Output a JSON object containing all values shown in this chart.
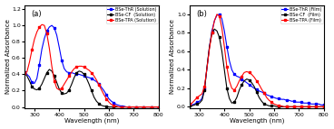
{
  "panel_a": {
    "title": "(a)",
    "xlabel": "Wavelength (nm)",
    "ylabel": "Normalized Absorbance",
    "xlim": [
      260,
      800
    ],
    "ylim": [
      -0.02,
      1.25
    ],
    "yticks": [
      0.0,
      0.2,
      0.4,
      0.6,
      0.8,
      1.0,
      1.2
    ],
    "xticks": [
      300,
      400,
      500,
      600,
      700,
      800
    ],
    "legend": [
      "BSe-ThR (Solution)",
      "BSe-CF  (Solution)",
      "BSe-TPA (Solution)"
    ],
    "colors": [
      "blue",
      "black",
      "red"
    ],
    "curves": {
      "ThR": {
        "x": [
          260,
          270,
          280,
          290,
          300,
          310,
          320,
          330,
          340,
          350,
          360,
          370,
          380,
          390,
          400,
          410,
          420,
          430,
          440,
          450,
          460,
          470,
          480,
          490,
          500,
          510,
          520,
          530,
          540,
          550,
          560,
          570,
          580,
          590,
          600,
          610,
          620,
          630,
          640,
          650,
          660,
          670,
          680,
          690,
          700,
          710,
          720,
          730,
          740,
          750,
          760,
          770,
          780,
          790,
          800
        ],
        "y": [
          0.43,
          0.4,
          0.37,
          0.3,
          0.29,
          0.35,
          0.52,
          0.71,
          0.84,
          0.93,
          0.98,
          1.0,
          0.97,
          0.88,
          0.73,
          0.57,
          0.47,
          0.43,
          0.42,
          0.42,
          0.41,
          0.4,
          0.4,
          0.39,
          0.38,
          0.37,
          0.36,
          0.35,
          0.33,
          0.31,
          0.28,
          0.24,
          0.2,
          0.15,
          0.1,
          0.07,
          0.05,
          0.03,
          0.02,
          0.01,
          0.01,
          0.0,
          0.0,
          0.0,
          0.0,
          0.0,
          0.0,
          0.0,
          0.0,
          0.0,
          0.0,
          0.0,
          0.0,
          0.0,
          0.0
        ]
      },
      "CF": {
        "x": [
          260,
          270,
          280,
          290,
          300,
          310,
          320,
          330,
          340,
          350,
          360,
          370,
          380,
          390,
          400,
          410,
          420,
          430,
          440,
          450,
          460,
          470,
          480,
          490,
          500,
          510,
          520,
          530,
          540,
          550,
          560,
          570,
          580,
          590,
          600,
          610,
          620,
          630,
          640,
          650,
          660,
          670,
          680,
          690,
          700,
          710,
          720,
          730,
          740,
          750,
          760,
          770,
          780,
          790,
          800
        ],
        "y": [
          0.42,
          0.38,
          0.32,
          0.25,
          0.22,
          0.21,
          0.23,
          0.28,
          0.35,
          0.42,
          0.46,
          0.44,
          0.38,
          0.3,
          0.22,
          0.17,
          0.16,
          0.17,
          0.21,
          0.28,
          0.36,
          0.42,
          0.44,
          0.43,
          0.4,
          0.35,
          0.28,
          0.2,
          0.12,
          0.07,
          0.04,
          0.02,
          0.01,
          0.01,
          0.0,
          0.0,
          0.0,
          0.0,
          0.0,
          0.0,
          0.0,
          0.0,
          0.0,
          0.0,
          0.0,
          0.0,
          0.0,
          0.0,
          0.0,
          0.0,
          0.0,
          0.0,
          0.0,
          0.0,
          0.0
        ]
      },
      "TPA": {
        "x": [
          260,
          270,
          280,
          290,
          300,
          310,
          320,
          330,
          340,
          350,
          360,
          370,
          380,
          390,
          400,
          410,
          420,
          430,
          440,
          450,
          460,
          470,
          480,
          490,
          500,
          510,
          520,
          530,
          540,
          550,
          560,
          570,
          580,
          590,
          600,
          610,
          620,
          630,
          640,
          650,
          660,
          670,
          680,
          690,
          700,
          710,
          720,
          730,
          740,
          750,
          760,
          770,
          780,
          790,
          800
        ],
        "y": [
          0.42,
          0.43,
          0.55,
          0.7,
          0.83,
          0.92,
          0.98,
          1.01,
          1.0,
          0.9,
          0.72,
          0.5,
          0.32,
          0.23,
          0.21,
          0.23,
          0.28,
          0.33,
          0.38,
          0.43,
          0.47,
          0.49,
          0.5,
          0.5,
          0.49,
          0.47,
          0.45,
          0.42,
          0.38,
          0.33,
          0.27,
          0.21,
          0.15,
          0.1,
          0.06,
          0.03,
          0.02,
          0.01,
          0.0,
          0.0,
          0.0,
          0.0,
          0.0,
          0.0,
          0.0,
          0.0,
          0.0,
          0.0,
          0.0,
          0.0,
          0.0,
          0.0,
          0.0,
          0.0,
          0.0
        ]
      }
    }
  },
  "panel_b": {
    "title": "(b)",
    "xlabel": "Wavelength (nm)",
    "ylabel": "Normalized Absorbance",
    "xlim": [
      260,
      800
    ],
    "ylim": [
      -0.02,
      1.1
    ],
    "yticks": [
      0.0,
      0.2,
      0.4,
      0.6,
      0.8,
      1.0
    ],
    "xticks": [
      300,
      400,
      500,
      600,
      700,
      800
    ],
    "legend": [
      "BSe-ThR (Film)",
      "BSe-CF  (Film)",
      "BSe-TPA (Film)"
    ],
    "colors": [
      "blue",
      "black",
      "red"
    ],
    "curves": {
      "ThR": {
        "x": [
          260,
          270,
          280,
          290,
          300,
          310,
          320,
          330,
          340,
          350,
          360,
          370,
          380,
          390,
          400,
          410,
          420,
          430,
          440,
          450,
          460,
          470,
          480,
          490,
          500,
          510,
          520,
          530,
          540,
          550,
          560,
          570,
          580,
          590,
          600,
          610,
          620,
          630,
          640,
          650,
          660,
          670,
          680,
          690,
          700,
          710,
          720,
          730,
          740,
          750,
          760,
          770,
          780,
          790,
          800
        ],
        "y": [
          0.02,
          0.02,
          0.03,
          0.05,
          0.06,
          0.09,
          0.2,
          0.42,
          0.65,
          0.82,
          0.93,
          0.99,
          1.0,
          0.95,
          0.82,
          0.65,
          0.5,
          0.4,
          0.35,
          0.33,
          0.32,
          0.3,
          0.28,
          0.26,
          0.24,
          0.22,
          0.2,
          0.19,
          0.17,
          0.16,
          0.15,
          0.13,
          0.12,
          0.11,
          0.1,
          0.09,
          0.09,
          0.08,
          0.08,
          0.07,
          0.07,
          0.06,
          0.06,
          0.05,
          0.05,
          0.05,
          0.04,
          0.04,
          0.04,
          0.03,
          0.03,
          0.03,
          0.03,
          0.02,
          0.02
        ]
      },
      "CF": {
        "x": [
          260,
          270,
          280,
          290,
          300,
          310,
          320,
          330,
          340,
          350,
          360,
          370,
          380,
          390,
          400,
          410,
          420,
          430,
          440,
          450,
          460,
          470,
          480,
          490,
          500,
          510,
          520,
          530,
          540,
          550,
          560,
          570,
          580,
          590,
          600,
          610,
          620,
          630,
          640,
          650,
          660,
          670,
          680,
          690,
          700,
          710,
          720,
          730,
          740,
          750,
          760,
          770,
          780,
          790,
          800
        ],
        "y": [
          0.01,
          0.01,
          0.02,
          0.03,
          0.04,
          0.07,
          0.18,
          0.43,
          0.65,
          0.8,
          0.84,
          0.82,
          0.75,
          0.6,
          0.4,
          0.2,
          0.09,
          0.04,
          0.05,
          0.1,
          0.18,
          0.24,
          0.28,
          0.3,
          0.29,
          0.26,
          0.22,
          0.16,
          0.1,
          0.06,
          0.03,
          0.02,
          0.01,
          0.01,
          0.01,
          0.0,
          0.0,
          0.0,
          0.0,
          0.0,
          0.0,
          0.0,
          0.0,
          0.0,
          0.0,
          0.0,
          0.0,
          0.0,
          0.0,
          0.0,
          0.0,
          0.0,
          0.0,
          0.0,
          0.0
        ]
      },
      "TPA": {
        "x": [
          260,
          270,
          280,
          290,
          300,
          310,
          320,
          330,
          340,
          350,
          360,
          370,
          380,
          390,
          400,
          410,
          420,
          430,
          440,
          450,
          460,
          470,
          480,
          490,
          500,
          510,
          520,
          530,
          540,
          550,
          560,
          570,
          580,
          590,
          600,
          610,
          620,
          630,
          640,
          650,
          660,
          670,
          680,
          690,
          700,
          710,
          720,
          730,
          740,
          750,
          760,
          770,
          780,
          790,
          800
        ],
        "y": [
          0.03,
          0.04,
          0.07,
          0.1,
          0.12,
          0.14,
          0.22,
          0.42,
          0.63,
          0.8,
          0.93,
          1.0,
          0.98,
          0.85,
          0.65,
          0.43,
          0.28,
          0.2,
          0.18,
          0.22,
          0.28,
          0.33,
          0.37,
          0.38,
          0.37,
          0.35,
          0.32,
          0.28,
          0.24,
          0.19,
          0.15,
          0.1,
          0.07,
          0.05,
          0.03,
          0.02,
          0.01,
          0.01,
          0.0,
          0.0,
          0.0,
          0.0,
          0.0,
          0.0,
          0.0,
          0.0,
          0.0,
          0.0,
          0.0,
          0.0,
          0.0,
          0.0,
          0.0,
          0.0,
          0.0
        ]
      }
    }
  }
}
